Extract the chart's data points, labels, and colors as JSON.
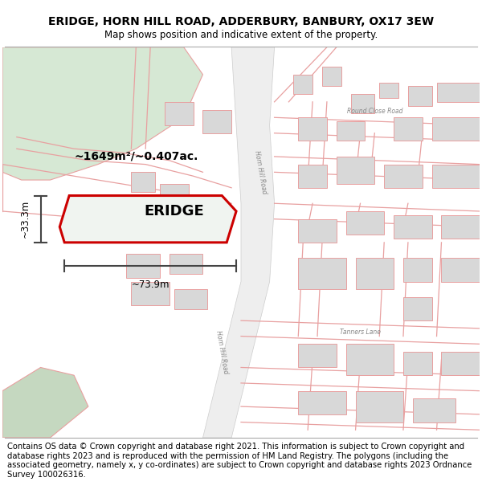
{
  "title": "ERIDGE, HORN HILL ROAD, ADDERBURY, BANBURY, OX17 3EW",
  "subtitle": "Map shows position and indicative extent of the property.",
  "footer": "Contains OS data © Crown copyright and database right 2021. This information is subject to Crown copyright and database rights 2023 and is reproduced with the permission of HM Land Registry. The polygons (including the associated geometry, namely x, y co-ordinates) are subject to Crown copyright and database rights 2023 Ordnance Survey 100026316.",
  "property_label": "ERIDGE",
  "area_label": "~1649m²/~0.407ac.",
  "width_label": "~73.9m",
  "height_label": "~33.3m",
  "title_fontsize": 10,
  "subtitle_fontsize": 8.5,
  "footer_fontsize": 7.2,
  "map_bg": "#ffffff",
  "road_fill": "#e8e8e8",
  "road_edge": "#bbbbbb",
  "building_fill": "#d8d8d8",
  "building_edge": "#e8a0a0",
  "green_fill": "#d6e8d4",
  "green_edge": "#e8a0a0",
  "road_line": "#e8a0a0",
  "prop_edge": "#cc0000",
  "prop_fill": "#f0f4f0"
}
